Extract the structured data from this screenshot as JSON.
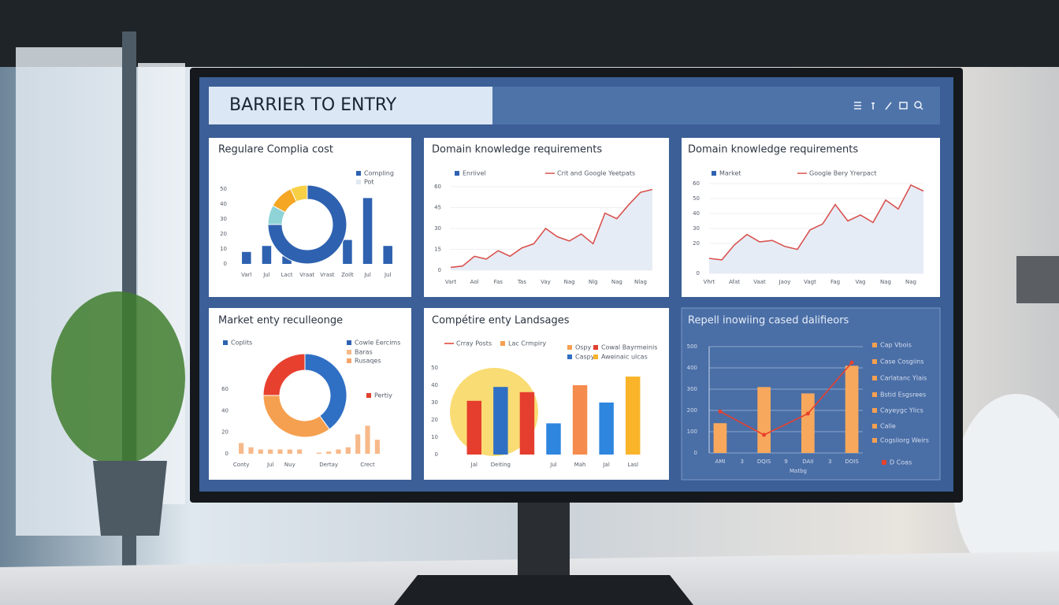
{
  "header": {
    "title": "BARRIER TO ENTRY"
  },
  "chart_data": [
    {
      "type": "bar",
      "title": "Regulare Complia cost",
      "legend": [
        {
          "name": "Compling",
          "color": "#2e62b0",
          "marker": "square"
        },
        {
          "name": "Pot",
          "color": "#dfe8f3",
          "marker": "square"
        }
      ],
      "categories": [
        "Varl",
        "Jul",
        "Lact",
        "Vraat",
        "Vrast",
        "Zoilt",
        "Jul",
        "Jul"
      ],
      "series": [
        {
          "values": [
            8,
            12,
            5,
            null,
            null,
            16,
            44,
            12
          ],
          "color": "#2e62b0"
        }
      ],
      "donut": {
        "values": [
          75,
          8,
          10,
          7
        ],
        "colors": [
          "#2e62b0",
          "#8fd3d6",
          "#f5a623",
          "#f7d046"
        ]
      },
      "ylim": [
        0,
        50
      ],
      "yticks": [
        0,
        10,
        20,
        30,
        40,
        50
      ],
      "grid": false
    },
    {
      "type": "area",
      "title": "Domain knowledge requirements",
      "legend": [
        {
          "name": "Enriivel",
          "color": "#2e62b0",
          "marker": "square"
        },
        {
          "name": "Crit and Google Yeetpats",
          "color": "#d9534f",
          "marker": "line"
        }
      ],
      "categories": [
        "Vart",
        null,
        "Aol",
        null,
        "Fas",
        null,
        "Tas",
        null,
        "Vay",
        null,
        "Nag",
        null,
        "Nlg",
        null,
        "Nag",
        null,
        "Nlag",
        null
      ],
      "series": [
        {
          "values": [
            2,
            3,
            10,
            8,
            14,
            10,
            16,
            19,
            30,
            24,
            21,
            26,
            19,
            41,
            37,
            47,
            56,
            58
          ],
          "color": "#d9534f",
          "fill": "#e6ecf6"
        }
      ],
      "ylim": [
        0,
        60
      ],
      "yticks": [
        0,
        15,
        30,
        45,
        60
      ],
      "grid": true
    },
    {
      "type": "area",
      "title": "Domain knowledge requirements",
      "legend": [
        {
          "name": "Market",
          "color": "#2e62b0",
          "marker": "square"
        },
        {
          "name": "Google Bery Yrerpact",
          "color": "#d9534f",
          "marker": "line"
        }
      ],
      "categories": [
        "Vhrt",
        null,
        "Afat",
        null,
        "Vaat",
        null,
        "Jaoy",
        null,
        "Vagt",
        null,
        "Fag",
        null,
        "Vag",
        null,
        "Nag",
        null,
        "Nag",
        null
      ],
      "series": [
        {
          "values": [
            10,
            9,
            19,
            26,
            21,
            22,
            18,
            16,
            29,
            33,
            46,
            35,
            39,
            34,
            49,
            43,
            59,
            55
          ],
          "color": "#d9534f",
          "fill": "#e6ecf6"
        }
      ],
      "ylim": [
        0,
        60
      ],
      "yticks": [
        0,
        20,
        30,
        40,
        50,
        60
      ],
      "grid": true
    },
    {
      "type": "bar",
      "title": "Market enty reculleonge",
      "legend": [
        {
          "name": "Coplits",
          "color": "#2e62b0",
          "marker": "square"
        },
        {
          "name": "Cowle Eercims",
          "color": "#2e62b0",
          "marker": "square"
        },
        {
          "name": "Baras",
          "color": "#f7b98a",
          "marker": "square"
        },
        {
          "name": "Rusaqes",
          "color": "#f5a36a",
          "marker": "square"
        },
        {
          "name": "Pertiy",
          "color": "#e0402e",
          "marker": "square"
        }
      ],
      "categories": [
        "Conty",
        null,
        null,
        "Jul",
        null,
        "Nuy",
        null,
        null,
        null,
        "Dertay",
        null,
        null,
        null,
        "Crect",
        null
      ],
      "series": [
        {
          "values": [
            10,
            6,
            4,
            4,
            4,
            4,
            4,
            null,
            1,
            2,
            4,
            6,
            18,
            26,
            13
          ],
          "color": "#f7b98a"
        }
      ],
      "donut": {
        "values": [
          40,
          35,
          25
        ],
        "colors": [
          "#2f6fc4",
          "#f5a050",
          "#e8402e"
        ]
      },
      "ylim": [
        0,
        60
      ],
      "yticks": [
        0,
        20,
        40,
        60
      ],
      "grid": false
    },
    {
      "type": "bar",
      "title": "Compétire enty Landsages",
      "legend": [
        {
          "name": "Crray Posts",
          "color": "#e0402e",
          "marker": "line"
        },
        {
          "name": "Lac Crmpiry",
          "color": "#f5a050",
          "marker": "square"
        },
        {
          "name": "Ospy",
          "color": "#f5a050",
          "marker": "square"
        },
        {
          "name": "Cowal Bayrmeinis",
          "color": "#e0402e",
          "marker": "square"
        },
        {
          "name": "Caspy",
          "color": "#2f6fc4",
          "marker": "square"
        },
        {
          "name": "Aweinaic ulcas",
          "color": "#f9b42a",
          "marker": "square"
        }
      ],
      "categories": [
        "Jal",
        "Deiting",
        null,
        "Jul",
        "Mah",
        "Jal",
        "Lasl"
      ],
      "series": [
        {
          "values": [
            31,
            39,
            36,
            18,
            40,
            30,
            45
          ],
          "colors": [
            "#e53e2e",
            "#2f6fc4",
            "#e53e2e",
            "#2f86de",
            "#f58b4c",
            "#2f86de",
            "#f9b42a"
          ]
        }
      ],
      "ylim": [
        0,
        50
      ],
      "yticks": [
        0,
        10,
        20,
        30,
        40,
        50
      ],
      "grid": false
    },
    {
      "type": "bar",
      "title": "Repell inowiing cased dalifieors",
      "xlabel": "Matbg",
      "legend": [
        {
          "name": "Cap Vbois",
          "color": "#f5a050",
          "marker": "square"
        },
        {
          "name": "Case Cosgiins",
          "color": "#f5a050",
          "marker": "square"
        },
        {
          "name": "Carlatanc Ylais",
          "color": "#f5a050",
          "marker": "square"
        },
        {
          "name": "Bstid Esgsrees",
          "color": "#f5a050",
          "marker": "square"
        },
        {
          "name": "Cayeygc Ylics",
          "color": "#f5a050",
          "marker": "square"
        },
        {
          "name": "Calle",
          "color": "#f5a050",
          "marker": "square"
        },
        {
          "name": "Cogsliorg Weirs",
          "color": "#f5a050",
          "marker": "square"
        },
        {
          "name": "D Coas",
          "color": "#e8402e",
          "marker": "square"
        }
      ],
      "categories": [
        "AMI",
        "3",
        "DQIS",
        "9",
        "DAII",
        "3",
        "DOIS"
      ],
      "series": [
        {
          "values": [
            140,
            null,
            310,
            null,
            280,
            null,
            410
          ],
          "color": "#f7a85c"
        },
        {
          "type": "line",
          "x": [
            0,
            2,
            4,
            6
          ],
          "values": [
            195,
            85,
            185,
            425
          ],
          "color": "#e8402e"
        }
      ],
      "ylim": [
        0,
        500
      ],
      "yticks": [
        0,
        100,
        200,
        300,
        400,
        500
      ],
      "grid": true
    }
  ]
}
